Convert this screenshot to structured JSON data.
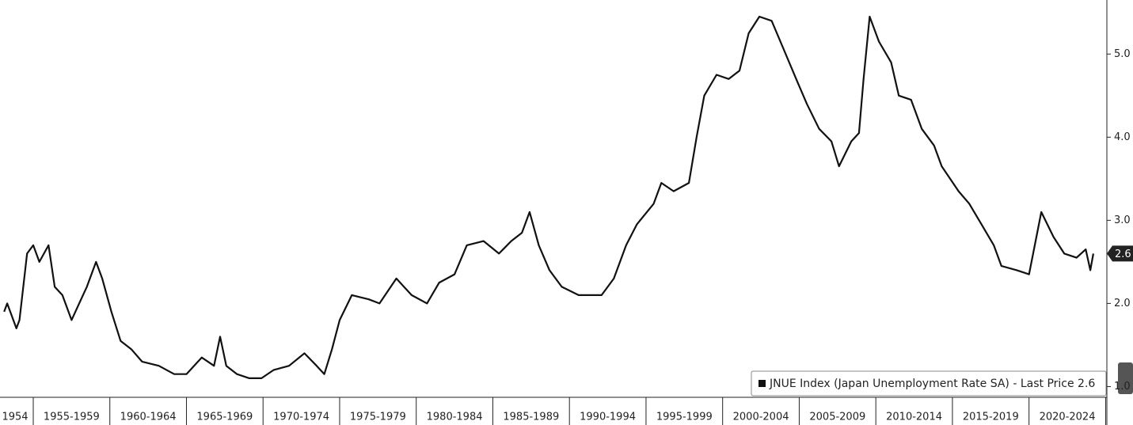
{
  "chart_data": {
    "type": "line",
    "series": [
      {
        "name": "JNUE Index (Japan Unemployment Rate SA)",
        "color": "#111111",
        "x": [
          1953.1,
          1953.3,
          1953.9,
          1954.1,
          1954.6,
          1955.0,
          1955.4,
          1956.0,
          1956.4,
          1956.9,
          1957.5,
          1958.0,
          1958.5,
          1959.1,
          1959.5,
          1960.1,
          1960.7,
          1961.4,
          1962.1,
          1963.2,
          1964.2,
          1965.0,
          1966.0,
          1966.8,
          1967.2,
          1967.6,
          1968.3,
          1969.1,
          1969.9,
          1970.7,
          1971.7,
          1972.7,
          1973.5,
          1974.0,
          1974.5,
          1975.0,
          1975.8,
          1976.9,
          1977.6,
          1978.7,
          1979.7,
          1980.7,
          1981.5,
          1982.5,
          1983.3,
          1984.4,
          1985.4,
          1986.2,
          1986.9,
          1987.4,
          1988.0,
          1988.7,
          1989.5,
          1990.6,
          1992.1,
          1992.9,
          1993.7,
          1994.4,
          1995.5,
          1996.0,
          1996.8,
          1997.8,
          1998.3,
          1998.8,
          1999.6,
          2000.4,
          2001.1,
          2001.7,
          2002.4,
          2003.2,
          2004.0,
          2004.8,
          2005.5,
          2006.3,
          2007.1,
          2007.6,
          2008.4,
          2008.9,
          2009.2,
          2009.6,
          2010.2,
          2011.0,
          2011.5,
          2012.3,
          2013.0,
          2013.8,
          2014.3,
          2015.4,
          2016.1,
          2016.9,
          2017.7,
          2018.2,
          2019.2,
          2020.0,
          2020.8,
          2021.6,
          2022.3,
          2023.1,
          2023.7,
          2024.0,
          2024.2
        ],
        "values": [
          1.9,
          2.0,
          1.7,
          1.8,
          2.6,
          2.7,
          2.5,
          2.7,
          2.2,
          2.1,
          1.8,
          2.0,
          2.2,
          2.5,
          2.3,
          1.9,
          1.55,
          1.45,
          1.3,
          1.25,
          1.15,
          1.15,
          1.35,
          1.25,
          1.6,
          1.25,
          1.15,
          1.1,
          1.1,
          1.2,
          1.25,
          1.4,
          1.25,
          1.15,
          1.45,
          1.8,
          2.1,
          2.05,
          2.0,
          2.3,
          2.1,
          2.0,
          2.25,
          2.35,
          2.7,
          2.75,
          2.6,
          2.75,
          2.85,
          3.1,
          2.7,
          2.4,
          2.2,
          2.1,
          2.1,
          2.3,
          2.7,
          2.95,
          3.2,
          3.45,
          3.35,
          3.45,
          4.0,
          4.5,
          4.75,
          4.7,
          4.8,
          5.25,
          5.45,
          5.4,
          5.05,
          4.7,
          4.4,
          4.1,
          3.95,
          3.65,
          3.95,
          4.05,
          4.7,
          5.45,
          5.15,
          4.9,
          4.5,
          4.45,
          4.1,
          3.9,
          3.65,
          3.35,
          3.2,
          2.95,
          2.7,
          2.45,
          2.4,
          2.35,
          3.1,
          2.8,
          2.6,
          2.55,
          2.65,
          2.4,
          2.6
        ]
      }
    ],
    "legend_text": "JNUE Index (Japan Unemployment Rate SA) - Last Price 2.6",
    "last_value": 2.6,
    "xlim": [
      1952.83,
      2025.03
    ],
    "ylim": [
      0.89,
      5.65
    ],
    "yticks": [
      {
        "value": 1,
        "label": "1.0"
      },
      {
        "value": 2,
        "label": "2.0"
      },
      {
        "value": 3,
        "label": "3.0"
      },
      {
        "value": 4,
        "label": "4.0"
      },
      {
        "value": 5,
        "label": "5.0"
      }
    ],
    "period_bounds": [
      1955,
      1960,
      1965,
      1970,
      1975,
      1980,
      1985,
      1990,
      1995,
      2000,
      2005,
      2010,
      2015,
      2020,
      2025
    ],
    "period_labels": [
      "1954",
      "1955-1959",
      "1960-1964",
      "1965-1969",
      "1970-1974",
      "1975-1979",
      "1980-1984",
      "1985-1989",
      "1990-1994",
      "1995-1999",
      "2000-2004",
      "2005-2009",
      "2010-2014",
      "2015-2019",
      "2020-2024"
    ]
  }
}
